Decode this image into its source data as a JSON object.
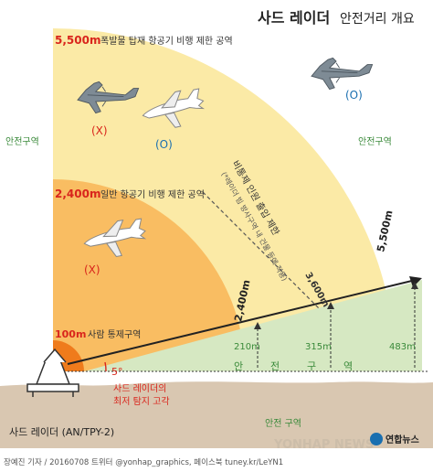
{
  "title": {
    "bold": "사드 레이더",
    "rest": "안전거리 개요"
  },
  "zones": {
    "outer": {
      "distance": "5,500m",
      "desc": "폭발물 탑재 항공기 비행 제한 공역"
    },
    "middle": {
      "distance": "2,400m",
      "desc": "일반 항공기 비행 제한 공역"
    },
    "inner": {
      "distance": "100m",
      "desc": "사람 통제구역"
    }
  },
  "marks": {
    "cross": "(X)",
    "ok": "(O)"
  },
  "safe_zone": "안전구역",
  "safe_zone_spaced": "안전 구역",
  "safe_ground_chars": [
    "안",
    "전",
    "구",
    "역"
  ],
  "restricted_entry": {
    "main": "비통제 인원 출입 제한",
    "sub": "(*레이더 빔 방사구역 내 건물 등에 적용)",
    "dist": "3,600m"
  },
  "ray_labels": {
    "outer": "5,500m",
    "middle": "2,400m"
  },
  "heights": [
    "210m",
    "315m",
    "483m"
  ],
  "angle": "5°",
  "min_angle": {
    "line1": "사드 레이더의",
    "line2": "최저 탐지 고각"
  },
  "radar_name": "사드 레이더 (AN/TPY-2)",
  "credit": "장예진 기자 / 20160708  트위터 @yonhap_graphics, 페이스북 tuney.kr/LeYN1",
  "logo": "연합뉴스",
  "watermark": "YONHAP NEWS",
  "colors": {
    "outer_zone": "#fbeaa6",
    "middle_zone": "#f9bd62",
    "inner_zone": "#ef7b1c",
    "green": "#d6e8c2",
    "red": "#d9251c",
    "ground": "#d9c7b1"
  }
}
